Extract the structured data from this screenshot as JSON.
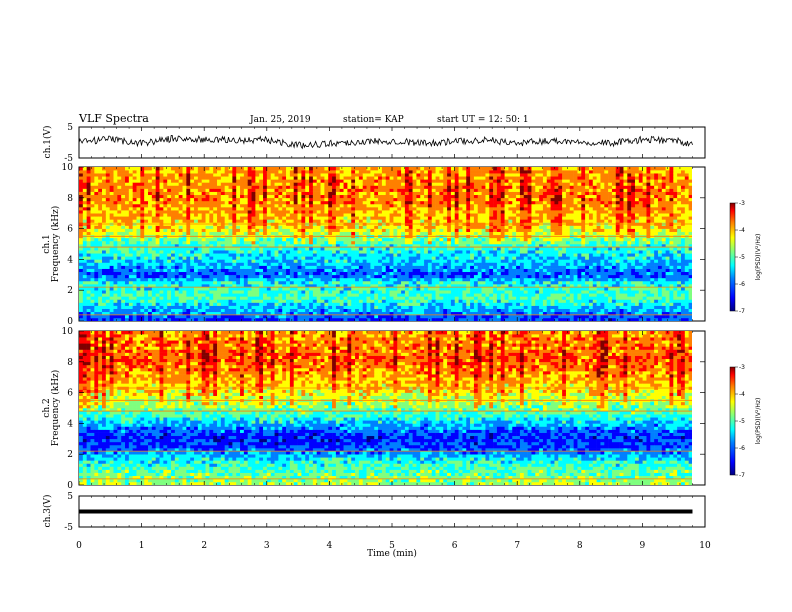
{
  "header": {
    "title": "VLF Spectra",
    "date": "Jan. 25, 2019",
    "station": "station= KAP",
    "start": "start  UT =   12: 50: 1"
  },
  "chart_data": [
    {
      "type": "line",
      "panel": "ch1-waveform",
      "ylabel": "ch.1(V)",
      "ylim": [
        -5,
        5
      ],
      "yticks": [
        "5",
        "-5"
      ],
      "xlim": [
        0,
        10
      ],
      "series_color": "#000000",
      "x": [
        0,
        0.5,
        1,
        1.5,
        2,
        2.5,
        3,
        3.5,
        4,
        4.5,
        5,
        5.5,
        6,
        6.5,
        7,
        7.5,
        8,
        8.5,
        9,
        9.5,
        9.8
      ],
      "y": [
        0.2,
        1.0,
        -0.2,
        1.3,
        0.9,
        0.7,
        0.9,
        -0.9,
        -0.3,
        0.2,
        0.6,
        -0.2,
        0.3,
        0.9,
        -0.3,
        0.6,
        0.3,
        -0.2,
        0.9,
        0.7,
        -0.5
      ]
    },
    {
      "type": "heatmap",
      "panel": "ch1-spectrogram",
      "ylabel_line1": "ch.1",
      "ylabel_line2": "Frequency  (kHz)",
      "ylim": [
        0,
        10
      ],
      "yticks": [
        "0",
        "2",
        "4",
        "6",
        "8",
        "10"
      ],
      "xlim": [
        0,
        10
      ],
      "colorbar_label": "log(PSD)(V²/Hz)",
      "colorbar_ticks": [
        "-3",
        "-4",
        "-5",
        "-6",
        "-7"
      ],
      "band_profile": [
        {
          "f_khz": 0.5,
          "level": -6.0
        },
        {
          "f_khz": 1.5,
          "level": -5.2
        },
        {
          "f_khz": 2.5,
          "level": -5.5
        },
        {
          "f_khz": 3.0,
          "level": -6.2
        },
        {
          "f_khz": 4.0,
          "level": -5.6
        },
        {
          "f_khz": 5.0,
          "level": -5.3
        },
        {
          "f_khz": 6.0,
          "level": -4.5
        },
        {
          "f_khz": 8.0,
          "level": -4.0
        },
        {
          "f_khz": 10.0,
          "level": -4.2
        }
      ]
    },
    {
      "type": "heatmap",
      "panel": "ch2-spectrogram",
      "ylabel_line1": "ch.2",
      "ylabel_line2": "Frequency  (kHz)",
      "ylim": [
        0,
        10
      ],
      "yticks": [
        "0",
        "2",
        "4",
        "6",
        "8",
        "10"
      ],
      "xlim": [
        0,
        10
      ],
      "colorbar_label": "log(PSD)(V²/Hz)",
      "colorbar_ticks": [
        "-3",
        "-4",
        "-5",
        "-6",
        "-7"
      ],
      "band_profile": [
        {
          "f_khz": 0.5,
          "level": -5.0
        },
        {
          "f_khz": 1.5,
          "level": -5.4
        },
        {
          "f_khz": 2.5,
          "level": -6.3
        },
        {
          "f_khz": 3.2,
          "level": -6.4
        },
        {
          "f_khz": 4.5,
          "level": -5.3
        },
        {
          "f_khz": 6.0,
          "level": -4.5
        },
        {
          "f_khz": 8.0,
          "level": -3.9
        },
        {
          "f_khz": 10.0,
          "level": -4.1
        }
      ]
    },
    {
      "type": "line",
      "panel": "ch3-waveform",
      "ylabel": "ch.3(V)",
      "ylim": [
        -5,
        5
      ],
      "yticks": [
        "5",
        "-5"
      ],
      "xlim": [
        0,
        10
      ],
      "series_color": "#000000",
      "x": [
        0,
        9.8
      ],
      "y": [
        0,
        0
      ]
    }
  ],
  "xaxis": {
    "label": "Time  (min)",
    "ticks": [
      "0",
      "1",
      "2",
      "3",
      "4",
      "5",
      "6",
      "7",
      "8",
      "9",
      "10"
    ]
  },
  "colors": {
    "jet": [
      "#00007f",
      "#0000ff",
      "#007fff",
      "#00ffff",
      "#7fff7f",
      "#ffff00",
      "#ff7f00",
      "#ff0000",
      "#7f0000"
    ]
  }
}
